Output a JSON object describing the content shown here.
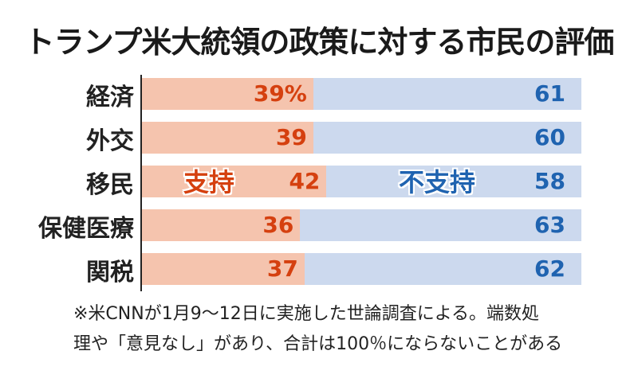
{
  "chart_data": {
    "type": "bar",
    "orientation": "horizontal-stacked",
    "title": "トランプ米大統領の政策に対する市民の評価",
    "categories": [
      "経済",
      "外交",
      "移民",
      "保健医療",
      "関税"
    ],
    "series": [
      {
        "name": "支持",
        "values": [
          39,
          39,
          42,
          36,
          37
        ],
        "labels": [
          "39%",
          "39",
          "42",
          "36",
          "37"
        ],
        "color": "#f5c4ae",
        "text_color": "#d5400f"
      },
      {
        "name": "不支持",
        "values": [
          61,
          60,
          58,
          63,
          62
        ],
        "labels": [
          "61",
          "60",
          "58",
          "63",
          "62"
        ],
        "color": "#ccd9ee",
        "text_color": "#1f63b0"
      }
    ],
    "unit": "%",
    "xlim": [
      0,
      100
    ]
  },
  "notes": [
    "※米CNNが1月9〜12日に実施した世論調査による。端数処",
    "理や「意見なし」があり、合計は100％にならないことがある"
  ]
}
